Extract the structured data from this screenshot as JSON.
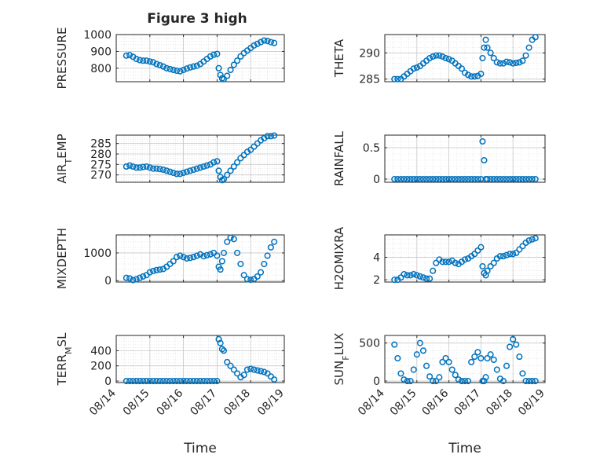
{
  "figure": {
    "title": "Figure 3 high"
  },
  "marker_color": "#0072BD",
  "chart_data": [
    {
      "type": "scatter",
      "ylabel": "PRESSURE",
      "xlabel": "",
      "xlim": [
        0,
        5
      ],
      "ylim": [
        720,
        1000
      ],
      "yticks": [
        800,
        900,
        1000
      ],
      "xticks": [
        0,
        1,
        2,
        3,
        4,
        5
      ],
      "xticklabels": [
        "08/14",
        "08/15",
        "08/16",
        "08/17",
        "08/18",
        "08/19"
      ],
      "x": [
        0.3,
        0.4,
        0.5,
        0.6,
        0.7,
        0.8,
        0.9,
        1.0,
        1.1,
        1.2,
        1.3,
        1.4,
        1.5,
        1.6,
        1.7,
        1.8,
        1.9,
        2.0,
        2.1,
        2.2,
        2.3,
        2.4,
        2.5,
        2.6,
        2.7,
        2.8,
        2.9,
        3.0,
        3.05,
        3.1,
        3.15,
        3.2,
        3.3,
        3.4,
        3.5,
        3.6,
        3.7,
        3.8,
        3.9,
        4.0,
        4.1,
        4.2,
        4.3,
        4.4,
        4.5,
        4.6,
        4.7
      ],
      "y": [
        875,
        878,
        868,
        855,
        848,
        845,
        845,
        840,
        835,
        825,
        818,
        810,
        800,
        795,
        790,
        785,
        782,
        790,
        798,
        805,
        810,
        815,
        825,
        840,
        855,
        870,
        880,
        885,
        800,
        760,
        740,
        735,
        755,
        790,
        820,
        845,
        870,
        890,
        905,
        920,
        935,
        945,
        955,
        965,
        962,
        955,
        950
      ]
    },
    {
      "type": "scatter",
      "ylabel": "THETA",
      "xlabel": "",
      "xlim": [
        0,
        5
      ],
      "ylim": [
        284.5,
        293.5
      ],
      "yticks": [
        285,
        290
      ],
      "xticks": [
        0,
        1,
        2,
        3,
        4,
        5
      ],
      "xticklabels": [
        "08/14",
        "08/15",
        "08/16",
        "08/17",
        "08/18",
        "08/19"
      ],
      "x": [
        0.3,
        0.4,
        0.5,
        0.6,
        0.7,
        0.8,
        0.9,
        1.0,
        1.1,
        1.2,
        1.3,
        1.4,
        1.5,
        1.6,
        1.7,
        1.8,
        1.9,
        2.0,
        2.1,
        2.2,
        2.3,
        2.4,
        2.5,
        2.6,
        2.7,
        2.8,
        2.9,
        3.0,
        3.05,
        3.1,
        3.15,
        3.2,
        3.3,
        3.4,
        3.5,
        3.6,
        3.7,
        3.8,
        3.9,
        4.0,
        4.1,
        4.2,
        4.3,
        4.4,
        4.5,
        4.6,
        4.7
      ],
      "y": [
        285,
        285,
        285,
        285.5,
        286,
        286.5,
        287,
        287.2,
        287.5,
        288,
        288.5,
        289,
        289.3,
        289.5,
        289.5,
        289.3,
        289,
        288.8,
        288.5,
        288,
        287.5,
        287,
        286.2,
        285.8,
        285.5,
        285.5,
        285.6,
        286,
        289,
        291,
        292.5,
        291,
        290,
        289,
        288.2,
        288,
        288,
        288.3,
        288.2,
        288,
        288.1,
        288.2,
        288.5,
        289.5,
        291,
        292.5,
        293
      ]
    },
    {
      "type": "scatter",
      "ylabel": "AIR_TEMP",
      "xlabel": "",
      "xlim": [
        0,
        5
      ],
      "ylim": [
        266.5,
        289
      ],
      "yticks": [
        270,
        275,
        280,
        285
      ],
      "xticks": [
        0,
        1,
        2,
        3,
        4,
        5
      ],
      "xticklabels": [
        "08/14",
        "08/15",
        "08/16",
        "08/17",
        "08/18",
        "08/19"
      ],
      "x": [
        0.3,
        0.4,
        0.5,
        0.6,
        0.7,
        0.8,
        0.9,
        1.0,
        1.1,
        1.2,
        1.3,
        1.4,
        1.5,
        1.6,
        1.7,
        1.8,
        1.9,
        2.0,
        2.1,
        2.2,
        2.3,
        2.4,
        2.5,
        2.6,
        2.7,
        2.8,
        2.9,
        3.0,
        3.05,
        3.1,
        3.15,
        3.2,
        3.3,
        3.4,
        3.5,
        3.6,
        3.7,
        3.8,
        3.9,
        4.0,
        4.1,
        4.2,
        4.3,
        4.4,
        4.5,
        4.6,
        4.7
      ],
      "y": [
        274,
        274.5,
        274,
        273.5,
        273.5,
        273.8,
        274,
        273.5,
        273,
        273,
        272.8,
        272.5,
        272,
        271.5,
        271,
        270.5,
        270.5,
        271,
        271.5,
        272,
        272.5,
        273,
        273.5,
        274,
        274.5,
        275,
        276,
        276.5,
        272,
        269,
        267.5,
        268,
        270,
        272,
        274,
        276,
        278,
        279.5,
        281,
        282,
        283.5,
        285,
        286.5,
        287.5,
        288.5,
        288.5,
        288.8
      ]
    },
    {
      "type": "scatter",
      "ylabel": "RAINFALL",
      "xlabel": "",
      "xlim": [
        0,
        5
      ],
      "ylim": [
        -0.05,
        0.7
      ],
      "yticks": [
        0,
        0.5
      ],
      "xticks": [
        0,
        1,
        2,
        3,
        4,
        5
      ],
      "xticklabels": [
        "08/14",
        "08/15",
        "08/16",
        "08/17",
        "08/18",
        "08/19"
      ],
      "x": [
        0.3,
        0.4,
        0.5,
        0.6,
        0.7,
        0.8,
        0.9,
        1.0,
        1.1,
        1.2,
        1.3,
        1.4,
        1.5,
        1.6,
        1.7,
        1.8,
        1.9,
        2.0,
        2.1,
        2.2,
        2.3,
        2.4,
        2.5,
        2.6,
        2.7,
        2.8,
        2.9,
        3.0,
        3.05,
        3.1,
        3.15,
        3.2,
        3.3,
        3.4,
        3.5,
        3.6,
        3.7,
        3.8,
        3.9,
        4.0,
        4.1,
        4.2,
        4.3,
        4.4,
        4.5,
        4.6,
        4.7
      ],
      "y": [
        0,
        0,
        0,
        0,
        0,
        0,
        0,
        0,
        0,
        0,
        0,
        0,
        0,
        0,
        0,
        0,
        0,
        0,
        0,
        0,
        0,
        0,
        0,
        0,
        0,
        0,
        0,
        0,
        0.6,
        0.3,
        0,
        0,
        0,
        0,
        0,
        0,
        0,
        0,
        0,
        0,
        0,
        0,
        0,
        0,
        0,
        0,
        0
      ]
    },
    {
      "type": "scatter",
      "ylabel": "MIXDEPTH",
      "xlabel": "",
      "xlim": [
        0,
        5
      ],
      "ylim": [
        -50,
        1650
      ],
      "yticks": [
        0,
        1000
      ],
      "xticks": [
        0,
        1,
        2,
        3,
        4,
        5
      ],
      "xticklabels": [
        "08/14",
        "08/15",
        "08/16",
        "08/17",
        "08/18",
        "08/19"
      ],
      "x": [
        0.3,
        0.4,
        0.5,
        0.6,
        0.7,
        0.8,
        0.9,
        1.0,
        1.1,
        1.2,
        1.3,
        1.4,
        1.5,
        1.6,
        1.7,
        1.8,
        1.9,
        2.0,
        2.1,
        2.2,
        2.3,
        2.4,
        2.5,
        2.6,
        2.7,
        2.8,
        2.9,
        3.0,
        3.05,
        3.1,
        3.15,
        3.2,
        3.3,
        3.4,
        3.5,
        3.6,
        3.7,
        3.8,
        3.9,
        4.0,
        4.1,
        4.2,
        4.3,
        4.4,
        4.5,
        4.6,
        4.7
      ],
      "y": [
        100,
        80,
        20,
        50,
        100,
        150,
        200,
        300,
        350,
        380,
        400,
        420,
        500,
        600,
        700,
        850,
        900,
        850,
        800,
        820,
        850,
        900,
        950,
        880,
        920,
        950,
        1000,
        900,
        500,
        400,
        700,
        1000,
        1400,
        1550,
        1500,
        1000,
        600,
        200,
        50,
        30,
        60,
        150,
        300,
        600,
        900,
        1200,
        1400
      ]
    },
    {
      "type": "scatter",
      "ylabel": "H2OMIXRA",
      "xlabel": "",
      "xlim": [
        0,
        5
      ],
      "ylim": [
        1.8,
        6
      ],
      "yticks": [
        2,
        4
      ],
      "xticks": [
        0,
        1,
        2,
        3,
        4,
        5
      ],
      "xticklabels": [
        "08/14",
        "08/15",
        "08/16",
        "08/17",
        "08/18",
        "08/19"
      ],
      "x": [
        0.3,
        0.4,
        0.5,
        0.6,
        0.7,
        0.8,
        0.9,
        1.0,
        1.1,
        1.2,
        1.3,
        1.4,
        1.5,
        1.6,
        1.7,
        1.8,
        1.9,
        2.0,
        2.1,
        2.2,
        2.3,
        2.4,
        2.5,
        2.6,
        2.7,
        2.8,
        2.9,
        3.0,
        3.05,
        3.1,
        3.15,
        3.2,
        3.3,
        3.4,
        3.5,
        3.6,
        3.7,
        3.8,
        3.9,
        4.0,
        4.1,
        4.2,
        4.3,
        4.4,
        4.5,
        4.6,
        4.7
      ],
      "y": [
        2,
        2,
        2.2,
        2.5,
        2.4,
        2.4,
        2.5,
        2.4,
        2.3,
        2.2,
        2.1,
        2.1,
        2.8,
        3.5,
        3.8,
        3.6,
        3.6,
        3.6,
        3.7,
        3.5,
        3.4,
        3.6,
        3.8,
        3.9,
        4.1,
        4.3,
        4.6,
        4.9,
        3.2,
        2.6,
        2.4,
        2.8,
        3.2,
        3.5,
        3.9,
        4.1,
        4.1,
        4.2,
        4.3,
        4.3,
        4.4,
        4.7,
        5.0,
        5.3,
        5.5,
        5.6,
        5.7
      ]
    },
    {
      "type": "scatter",
      "ylabel": "TERR_MSL",
      "xlabel": "Time",
      "xlim": [
        0,
        5
      ],
      "ylim": [
        -20,
        600
      ],
      "yticks": [
        0,
        200,
        400
      ],
      "xticks": [
        0,
        1,
        2,
        3,
        4,
        5
      ],
      "xticklabels": [
        "08/14",
        "08/15",
        "08/16",
        "08/17",
        "08/18",
        "08/19"
      ],
      "x": [
        0.3,
        0.4,
        0.5,
        0.6,
        0.7,
        0.8,
        0.9,
        1.0,
        1.1,
        1.2,
        1.3,
        1.4,
        1.5,
        1.6,
        1.7,
        1.8,
        1.9,
        2.0,
        2.1,
        2.2,
        2.3,
        2.4,
        2.5,
        2.6,
        2.7,
        2.8,
        2.9,
        3.0,
        3.05,
        3.1,
        3.15,
        3.2,
        3.3,
        3.4,
        3.5,
        3.6,
        3.7,
        3.8,
        3.9,
        4.0,
        4.1,
        4.2,
        4.3,
        4.4,
        4.5,
        4.6,
        4.7
      ],
      "y": [
        0,
        0,
        0,
        0,
        0,
        0,
        0,
        0,
        0,
        0,
        0,
        0,
        0,
        0,
        0,
        0,
        0,
        0,
        0,
        0,
        0,
        0,
        0,
        0,
        0,
        0,
        0,
        0,
        550,
        500,
        420,
        400,
        250,
        200,
        150,
        100,
        50,
        80,
        150,
        160,
        150,
        140,
        130,
        120,
        100,
        60,
        20
      ]
    },
    {
      "type": "scatter",
      "ylabel": "SUN_FLUX",
      "xlabel": "Time",
      "xlim": [
        0,
        5
      ],
      "ylim": [
        -20,
        600
      ],
      "yticks": [
        0,
        500
      ],
      "xticks": [
        0,
        1,
        2,
        3,
        4,
        5
      ],
      "xticklabels": [
        "08/14",
        "08/15",
        "08/16",
        "08/17",
        "08/18",
        "08/19"
      ],
      "x": [
        0.3,
        0.4,
        0.5,
        0.6,
        0.7,
        0.8,
        0.9,
        1.0,
        1.1,
        1.2,
        1.3,
        1.4,
        1.5,
        1.6,
        1.7,
        1.8,
        1.9,
        2.0,
        2.1,
        2.2,
        2.3,
        2.4,
        2.5,
        2.6,
        2.7,
        2.8,
        2.9,
        3.0,
        3.05,
        3.1,
        3.15,
        3.2,
        3.3,
        3.4,
        3.5,
        3.6,
        3.7,
        3.8,
        3.9,
        4.0,
        4.1,
        4.2,
        4.3,
        4.4,
        4.5,
        4.6,
        4.7
      ],
      "y": [
        480,
        300,
        100,
        20,
        0,
        0,
        150,
        350,
        500,
        400,
        200,
        60,
        0,
        0,
        50,
        250,
        300,
        250,
        150,
        80,
        20,
        0,
        0,
        0,
        250,
        320,
        380,
        300,
        0,
        0,
        50,
        300,
        350,
        280,
        150,
        30,
        0,
        200,
        450,
        550,
        480,
        320,
        100,
        0,
        0,
        0,
        0
      ]
    }
  ]
}
